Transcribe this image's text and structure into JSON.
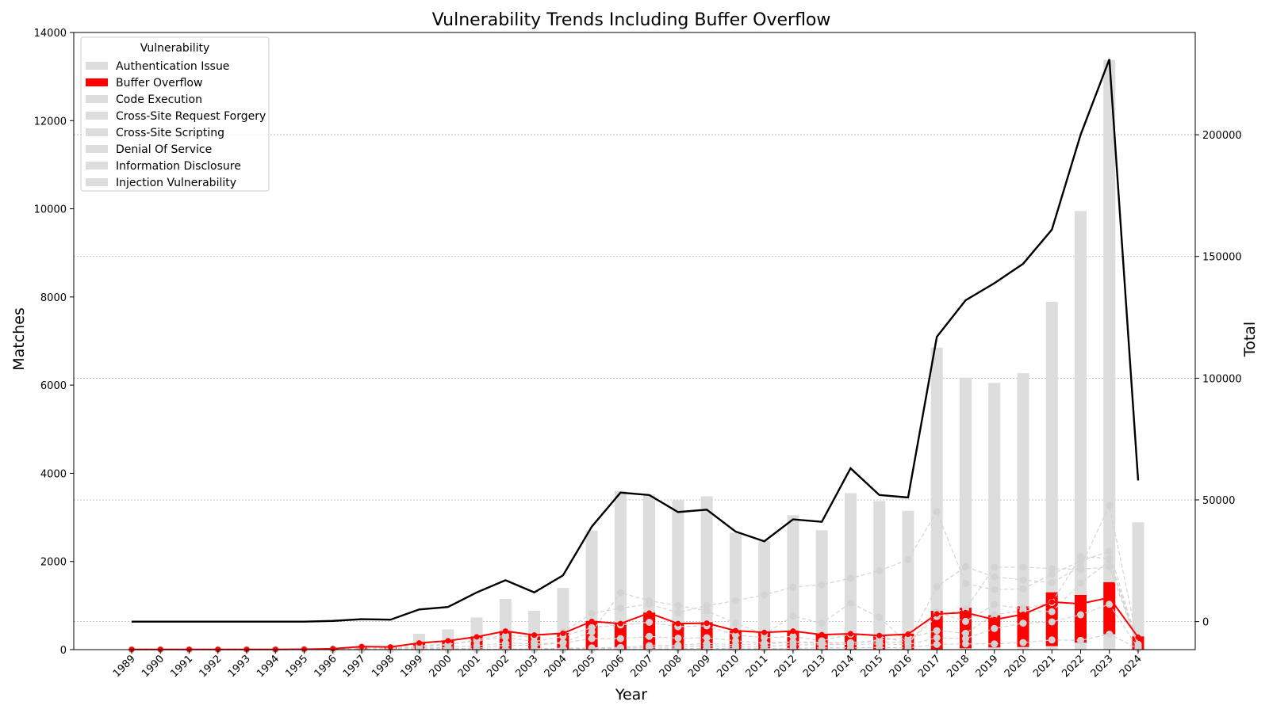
{
  "chart_data": {
    "type": "bar",
    "title": "Vulnerability Trends Including Buffer Overflow",
    "xlabel": "Year",
    "ylabel": "Matches",
    "ylabel_right": "Total",
    "ylim": [
      0,
      14000
    ],
    "ylim_right": [
      -11500,
      242000
    ],
    "yticks": [
      0,
      2000,
      4000,
      6000,
      8000,
      10000,
      12000,
      14000
    ],
    "yticks_right": [
      0,
      50000,
      100000,
      150000,
      200000
    ],
    "grid": "horizontal dotted on right axis",
    "legend": {
      "title": "Vulnerability",
      "placement": "top-left",
      "entries": [
        "Authentication Issue",
        "Buffer Overflow",
        "Code Execution",
        "Cross-Site Request Forgery",
        "Cross-Site Scripting",
        "Denial Of Service",
        "Information Disclosure",
        "Injection Vulnerability"
      ]
    },
    "categories": [
      "1989",
      "1990",
      "1991",
      "1992",
      "1993",
      "1994",
      "1995",
      "1996",
      "1997",
      "1998",
      "1999",
      "2000",
      "2001",
      "2002",
      "2003",
      "2004",
      "2005",
      "2006",
      "2007",
      "2008",
      "2009",
      "2010",
      "2011",
      "2012",
      "2013",
      "2014",
      "2015",
      "2016",
      "2017",
      "2018",
      "2019",
      "2020",
      "2021",
      "2022",
      "2023",
      "2024"
    ],
    "bar_series": {
      "name": "Buffer Overflow",
      "color": "#ff0000",
      "bottoms": [
        0,
        0,
        0,
        0,
        0,
        0,
        0,
        0,
        0,
        0,
        0,
        0,
        0,
        0,
        0,
        0,
        0,
        0,
        0,
        0,
        0,
        0,
        0,
        0,
        0,
        0,
        0,
        0,
        0,
        30,
        50,
        60,
        80,
        160,
        350,
        0
      ],
      "tops": [
        5,
        5,
        5,
        5,
        5,
        5,
        10,
        20,
        70,
        60,
        150,
        200,
        300,
        420,
        350,
        380,
        650,
        600,
        840,
        600,
        620,
        430,
        410,
        430,
        350,
        360,
        330,
        360,
        880,
        950,
        780,
        980,
        1300,
        1240,
        1530,
        300
      ]
    },
    "other_bar_series": {
      "color": "#dddddd",
      "tops": [
        5,
        5,
        5,
        5,
        5,
        5,
        10,
        20,
        70,
        60,
        360,
        460,
        730,
        1150,
        880,
        1400,
        2700,
        3600,
        3520,
        3390,
        3480,
        2650,
        2460,
        3050,
        2710,
        3550,
        3370,
        3150,
        6850,
        6170,
        6050,
        6270,
        7890,
        9950,
        13380,
        2890
      ]
    },
    "buffer_overflow_line": {
      "color": "#ff0000",
      "values": [
        5,
        5,
        5,
        5,
        5,
        5,
        10,
        20,
        70,
        60,
        150,
        200,
        290,
        420,
        330,
        370,
        640,
        590,
        830,
        590,
        600,
        430,
        390,
        420,
        340,
        360,
        320,
        350,
        810,
        840,
        680,
        800,
        1080,
        1040,
        1180,
        280
      ]
    },
    "other_category_lines": {
      "color": "#d3d3d3",
      "series": [
        [
          0,
          0,
          0,
          0,
          0,
          0,
          5,
          15,
          40,
          40,
          90,
          120,
          200,
          280,
          180,
          300,
          500,
          560,
          620,
          520,
          540,
          330,
          270,
          300,
          200,
          350,
          300,
          160,
          1430,
          1880,
          1650,
          1580,
          1520,
          1880,
          3270,
          120
        ],
        [
          0,
          0,
          0,
          0,
          0,
          0,
          0,
          5,
          10,
          20,
          60,
          110,
          230,
          320,
          290,
          400,
          820,
          940,
          1030,
          840,
          1000,
          1110,
          1240,
          1420,
          1470,
          1620,
          1790,
          2040,
          3130,
          1500,
          1360,
          1380,
          1710,
          2010,
          2230,
          100
        ],
        [
          0,
          0,
          0,
          0,
          0,
          0,
          0,
          0,
          5,
          10,
          30,
          50,
          90,
          150,
          130,
          160,
          400,
          1290,
          1110,
          1000,
          880,
          600,
          350,
          760,
          600,
          1060,
          730,
          140,
          850,
          640,
          1020,
          930,
          1070,
          2110,
          2070,
          100
        ],
        [
          0,
          0,
          0,
          0,
          0,
          0,
          0,
          0,
          0,
          5,
          20,
          20,
          30,
          100,
          100,
          150,
          250,
          250,
          300,
          260,
          270,
          200,
          150,
          180,
          160,
          160,
          180,
          150,
          750,
          920,
          1870,
          1870,
          1840,
          1820,
          1880,
          80
        ],
        [
          0,
          0,
          0,
          0,
          0,
          0,
          0,
          0,
          0,
          0,
          0,
          0,
          10,
          10,
          20,
          30,
          40,
          50,
          90,
          100,
          140,
          110,
          130,
          170,
          140,
          150,
          220,
          260,
          430,
          370,
          790,
          890,
          860,
          1510,
          2010,
          70
        ],
        [
          0,
          0,
          0,
          0,
          0,
          0,
          0,
          0,
          0,
          0,
          0,
          0,
          0,
          10,
          20,
          20,
          20,
          30,
          50,
          60,
          90,
          60,
          70,
          110,
          110,
          120,
          130,
          110,
          270,
          250,
          480,
          600,
          630,
          790,
          1030,
          30
        ],
        [
          0,
          0,
          0,
          0,
          0,
          0,
          0,
          0,
          0,
          0,
          0,
          0,
          0,
          0,
          0,
          0,
          0,
          5,
          10,
          20,
          30,
          20,
          20,
          30,
          40,
          40,
          50,
          40,
          120,
          130,
          130,
          160,
          220,
          210,
          350,
          20
        ]
      ]
    },
    "total_line": {
      "color": "#000000",
      "axis": "right",
      "values": [
        0,
        0,
        0,
        0,
        0,
        0,
        0,
        300,
        1000,
        800,
        5000,
        6000,
        12000,
        17000,
        12000,
        19000,
        39000,
        53000,
        52000,
        45000,
        46000,
        37000,
        33000,
        42000,
        41000,
        63000,
        52000,
        51000,
        117000,
        132000,
        139000,
        147000,
        161000,
        200000,
        231000,
        58000
      ]
    }
  }
}
